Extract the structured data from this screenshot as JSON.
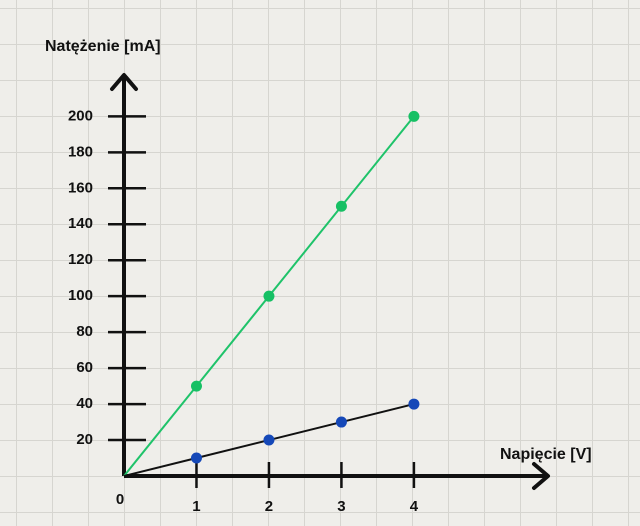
{
  "chart_data": {
    "type": "line",
    "x_label": "Napięcie [V]",
    "y_label": "Natężenie [mA]",
    "x": [
      1,
      2,
      3,
      4
    ],
    "series": [
      {
        "color": "#1fc36a",
        "marker_color": "#16c064",
        "values": [
          50,
          100,
          150,
          200
        ]
      },
      {
        "color": "#111111",
        "marker_color": "#1548b8",
        "values": [
          10,
          20,
          30,
          40
        ]
      }
    ],
    "xlim": [
      0,
      5.85
    ],
    "ylim": [
      0,
      223
    ],
    "xticks": [
      0,
      1,
      2,
      3,
      4
    ],
    "yticks": [
      20,
      40,
      60,
      80,
      100,
      120,
      140,
      160,
      180,
      200
    ]
  }
}
